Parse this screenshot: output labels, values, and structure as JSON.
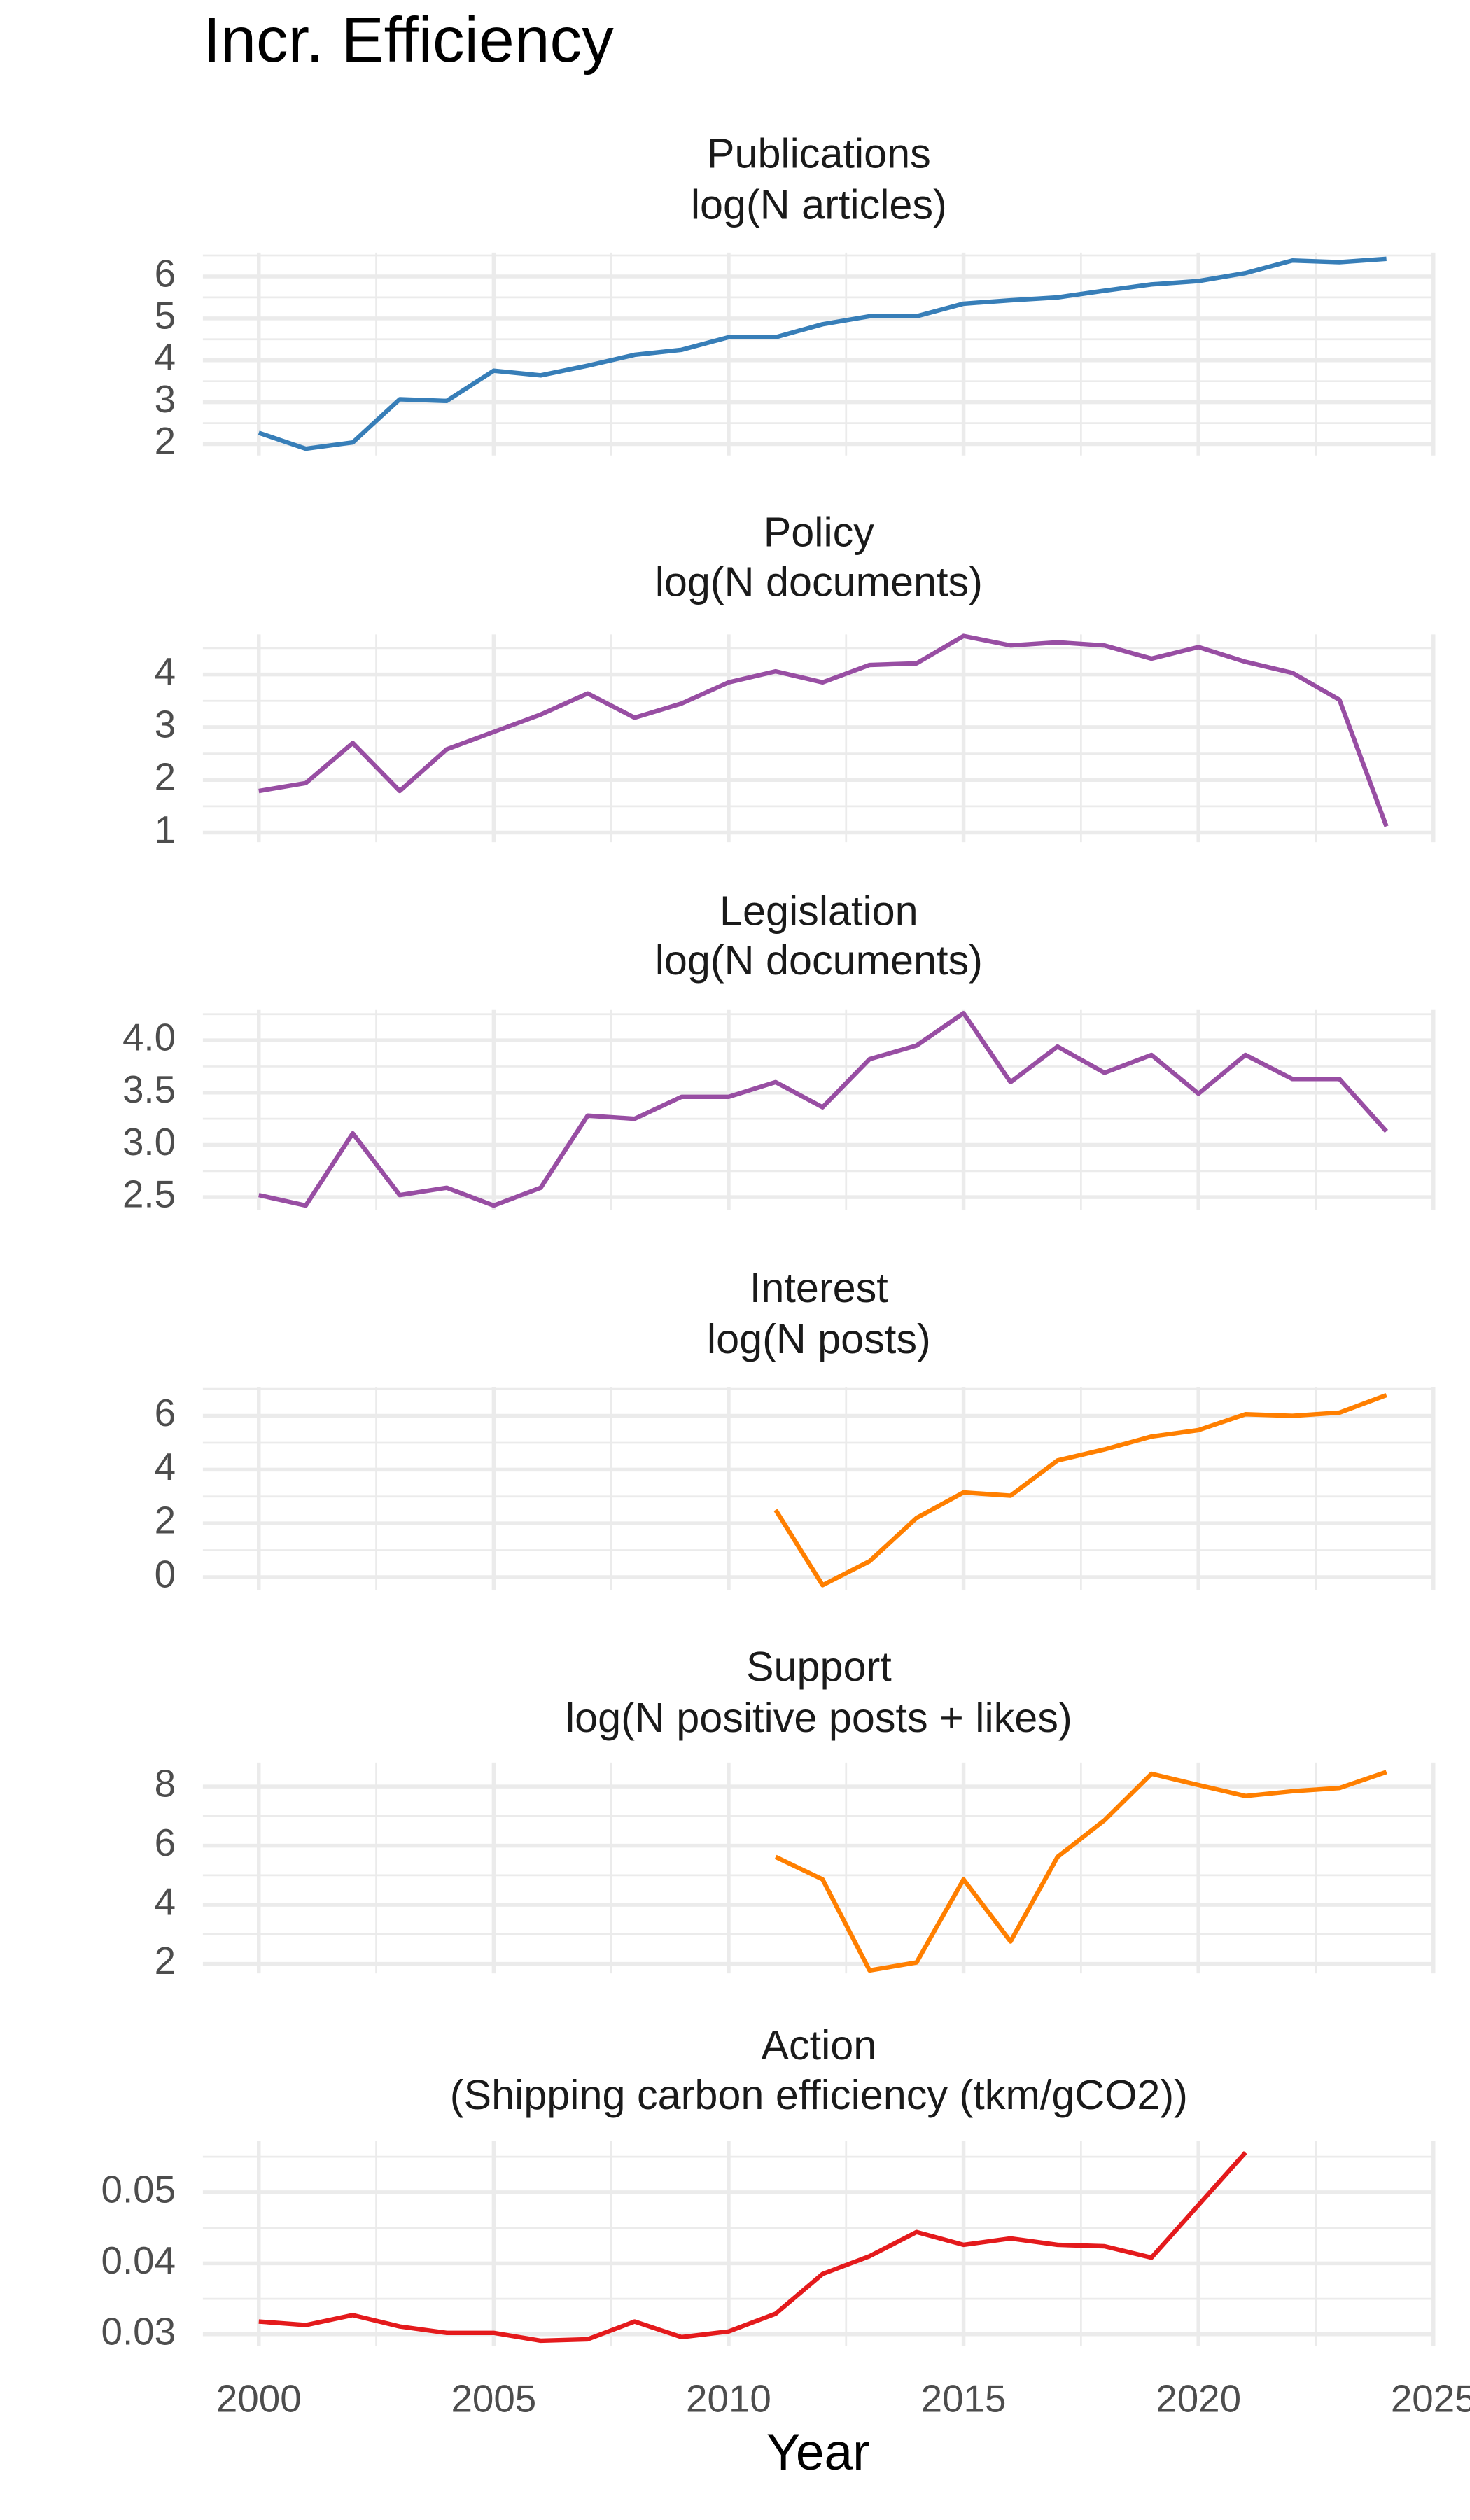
{
  "title": "Incr. Efficiency",
  "x_label": "Year",
  "chart_data": [
    {
      "type": "line",
      "title": "Publications",
      "subtitle": "log(N articles)",
      "color": "#377eb8",
      "x": [
        2000,
        2001,
        2002,
        2003,
        2004,
        2005,
        2006,
        2007,
        2008,
        2009,
        2010,
        2011,
        2012,
        2013,
        2014,
        2015,
        2016,
        2017,
        2018,
        2019,
        2020,
        2021,
        2022,
        2023,
        2024
      ],
      "values": [
        2.27,
        1.89,
        2.04,
        3.07,
        3.03,
        3.75,
        3.64,
        3.87,
        4.13,
        4.25,
        4.55,
        4.55,
        4.86,
        5.05,
        5.05,
        5.35,
        5.43,
        5.5,
        5.66,
        5.81,
        5.89,
        6.08,
        6.38,
        6.34,
        6.42
      ],
      "xlim": [
        1998.81,
        2025.03
      ],
      "xticks": [
        2000,
        2005,
        2010,
        2015,
        2020,
        2025
      ],
      "ylim": [
        1.73,
        6.57
      ],
      "yticks": [
        2,
        3,
        4,
        5,
        6
      ],
      "grid": true
    },
    {
      "type": "line",
      "title": "Policy",
      "subtitle": "log(N documents)",
      "color": "#984ea3",
      "x": [
        2000,
        2001,
        2002,
        2003,
        2004,
        2005,
        2006,
        2007,
        2008,
        2009,
        2010,
        2011,
        2012,
        2013,
        2014,
        2015,
        2016,
        2017,
        2018,
        2019,
        2020,
        2021,
        2022,
        2023,
        2024
      ],
      "values": [
        1.79,
        1.94,
        2.7,
        1.79,
        2.58,
        2.91,
        3.24,
        3.64,
        3.18,
        3.45,
        3.85,
        4.06,
        3.85,
        4.18,
        4.21,
        4.73,
        4.55,
        4.61,
        4.55,
        4.3,
        4.52,
        4.24,
        4.03,
        3.52,
        1.12
      ],
      "xlim": [
        1998.81,
        2025.03
      ],
      "xticks": [
        2000,
        2005,
        2010,
        2015,
        2020,
        2025
      ],
      "ylim": [
        0.82,
        4.76
      ],
      "yticks": [
        1,
        2,
        3,
        4
      ],
      "grid": true
    },
    {
      "type": "line",
      "title": "Legislation",
      "subtitle": "log(N documents)",
      "color": "#984ea3",
      "x": [
        2000,
        2001,
        2002,
        2003,
        2004,
        2005,
        2006,
        2007,
        2008,
        2009,
        2010,
        2011,
        2012,
        2013,
        2014,
        2015,
        2016,
        2017,
        2018,
        2019,
        2020,
        2021,
        2022,
        2023,
        2024
      ],
      "values": [
        2.52,
        2.42,
        3.11,
        2.52,
        2.59,
        2.42,
        2.59,
        3.28,
        3.25,
        3.46,
        3.46,
        3.6,
        3.36,
        3.82,
        3.95,
        4.26,
        3.6,
        3.94,
        3.69,
        3.86,
        3.49,
        3.86,
        3.63,
        3.63,
        3.13
      ],
      "xlim": [
        1998.81,
        2025.03
      ],
      "xticks": [
        2000,
        2005,
        2010,
        2015,
        2020,
        2025
      ],
      "ylim": [
        2.38,
        4.29
      ],
      "yticks": [
        {
          "value": 2.5,
          "label": "2.5"
        },
        {
          "value": 3,
          "label": "3.0"
        },
        {
          "value": 3.5,
          "label": "3.5"
        },
        {
          "value": 4,
          "label": "4.0"
        }
      ],
      "grid": true
    },
    {
      "type": "line",
      "title": "Interest",
      "subtitle": "log(N posts)",
      "color": "#ff7f00",
      "x": [
        2000,
        2001,
        2002,
        2003,
        2004,
        2005,
        2006,
        2007,
        2008,
        2009,
        2010,
        2011,
        2012,
        2013,
        2014,
        2015,
        2016,
        2017,
        2018,
        2019,
        2020,
        2021,
        2022,
        2023,
        2024
      ],
      "values": [
        null,
        null,
        null,
        null,
        null,
        null,
        null,
        null,
        null,
        null,
        null,
        2.5,
        -0.3,
        0.59,
        2.2,
        3.15,
        3.03,
        4.34,
        4.75,
        5.23,
        5.47,
        6.06,
        6.0,
        6.12,
        6.77
      ],
      "xlim": [
        1998.81,
        2025.03
      ],
      "xticks": [
        2000,
        2005,
        2010,
        2015,
        2020,
        2025
      ],
      "ylim": [
        -0.48,
        7.07
      ],
      "yticks": [
        0,
        2,
        4,
        6
      ],
      "grid": true
    },
    {
      "type": "line",
      "title": "Support",
      "subtitle": "log(N positive posts + likes)",
      "color": "#ff7f00",
      "x": [
        2000,
        2001,
        2002,
        2003,
        2004,
        2005,
        2006,
        2007,
        2008,
        2009,
        2010,
        2011,
        2012,
        2013,
        2014,
        2015,
        2016,
        2017,
        2018,
        2019,
        2020,
        2021,
        2022,
        2023,
        2024
      ],
      "values": [
        null,
        null,
        null,
        null,
        null,
        null,
        null,
        null,
        null,
        null,
        null,
        5.62,
        4.86,
        1.78,
        2.05,
        4.86,
        2.76,
        5.62,
        6.86,
        8.43,
        8.05,
        7.68,
        7.84,
        7.95,
        8.49
      ],
      "xlim": [
        1998.81,
        2025.03
      ],
      "xticks": [
        2000,
        2005,
        2010,
        2015,
        2020,
        2025
      ],
      "ylim": [
        1.68,
        8.81
      ],
      "yticks": [
        2,
        4,
        6,
        8
      ],
      "grid": true
    },
    {
      "type": "line",
      "title": "Action",
      "subtitle": "(Shipping carbon efficiency (tkm/gCO2))",
      "color": "#e41a1c",
      "x": [
        2000,
        2001,
        2002,
        2003,
        2004,
        2005,
        2006,
        2007,
        2008,
        2009,
        2010,
        2011,
        2012,
        2013,
        2014,
        2015,
        2016,
        2017,
        2018,
        2019,
        2020,
        2021,
        2022,
        2023,
        2024
      ],
      "values": [
        0.0318,
        0.0313,
        0.0327,
        0.0311,
        0.0302,
        0.0302,
        0.0291,
        0.0293,
        0.0318,
        0.0296,
        0.0304,
        0.0329,
        0.0385,
        0.041,
        0.0444,
        0.0426,
        0.0435,
        0.0426,
        0.0424,
        0.0408,
        0.0482,
        0.0556,
        null,
        null,
        null
      ],
      "xlim": [
        1998.81,
        2025.03
      ],
      "xticks": [
        2000,
        2005,
        2010,
        2015,
        2020,
        2025
      ],
      "ylim": [
        0.0284,
        0.0572
      ],
      "yticks": [
        0.03,
        0.04,
        0.05
      ],
      "grid": true
    }
  ]
}
